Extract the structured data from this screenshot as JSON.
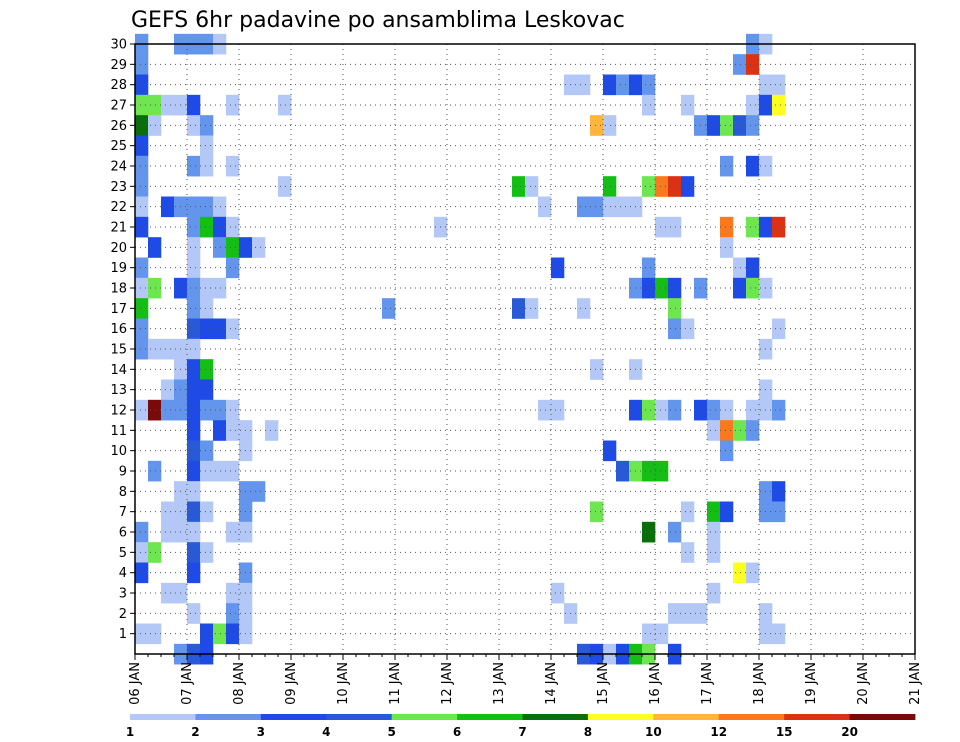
{
  "chart_data": {
    "type": "heatmap",
    "title": "GEFS 6hr padavine po ansamblima Leskovac",
    "x_tick_labels": [
      "06 JAN",
      "07 JAN",
      "08 JAN",
      "09 JAN",
      "10 JAN",
      "11 JAN",
      "12 JAN",
      "13 JAN",
      "14 JAN",
      "15 JAN",
      "16 JAN",
      "17 JAN",
      "18 JAN",
      "19 JAN",
      "20 JAN",
      "21 JAN"
    ],
    "y_tick_labels": [
      "1",
      "2",
      "3",
      "4",
      "5",
      "6",
      "7",
      "8",
      "9",
      "10",
      "11",
      "12",
      "13",
      "14",
      "15",
      "16",
      "17",
      "18",
      "19",
      "20",
      "21",
      "22",
      "23",
      "24",
      "25",
      "26",
      "27",
      "28",
      "29",
      "30"
    ],
    "x_range_days": [
      6,
      21
    ],
    "time_step_hours": 6,
    "y_range_members": [
      0,
      30
    ],
    "grid": true,
    "colorbar": {
      "tick_labels": [
        "1",
        "2",
        "3",
        "4",
        "5",
        "6",
        "7",
        "8",
        "10",
        "12",
        "15",
        "20"
      ],
      "colors": [
        "#b4c8f8",
        "#6495ed",
        "#1e4be6",
        "#285ad7",
        "#6ee650",
        "#14be14",
        "#0a6e0a",
        "#ffff1e",
        "#ffb43c",
        "#fa781e",
        "#dc3214",
        "#780a0a"
      ]
    },
    "cells": [
      [
        0,
        30,
        2
      ],
      [
        0,
        29,
        2
      ],
      [
        0,
        28,
        3
      ],
      [
        0,
        27,
        5
      ],
      [
        0,
        26,
        7
      ],
      [
        0,
        25,
        3
      ],
      [
        0,
        24,
        2
      ],
      [
        0,
        23,
        2
      ],
      [
        0,
        22,
        1
      ],
      [
        0,
        21,
        3
      ],
      [
        0,
        19,
        2
      ],
      [
        0,
        18,
        1
      ],
      [
        0,
        17,
        6
      ],
      [
        0,
        16,
        2
      ],
      [
        0,
        15,
        2
      ],
      [
        0,
        12,
        1
      ],
      [
        0,
        6,
        2
      ],
      [
        0,
        5,
        1
      ],
      [
        0,
        4,
        3
      ],
      [
        0,
        1,
        1
      ],
      [
        1,
        27,
        5
      ],
      [
        1,
        26,
        1
      ],
      [
        1,
        20,
        3
      ],
      [
        1,
        18,
        5
      ],
      [
        1,
        15,
        1
      ],
      [
        1,
        12,
        12
      ],
      [
        1,
        9,
        2
      ],
      [
        1,
        5,
        5
      ],
      [
        1,
        1,
        1
      ],
      [
        2,
        27,
        1
      ],
      [
        2,
        22,
        3
      ],
      [
        2,
        15,
        1
      ],
      [
        2,
        13,
        1
      ],
      [
        2,
        12,
        2
      ],
      [
        2,
        7,
        1
      ],
      [
        2,
        6,
        1
      ],
      [
        2,
        3,
        1
      ],
      [
        3,
        30,
        2
      ],
      [
        3,
        27,
        1
      ],
      [
        3,
        22,
        2
      ],
      [
        3,
        18,
        3
      ],
      [
        3,
        15,
        1
      ],
      [
        3,
        14,
        1
      ],
      [
        3,
        13,
        2
      ],
      [
        3,
        12,
        2
      ],
      [
        3,
        8,
        1
      ],
      [
        3,
        7,
        1
      ],
      [
        3,
        6,
        1
      ],
      [
        3,
        3,
        1
      ],
      [
        3,
        0,
        2
      ],
      [
        4,
        30,
        2
      ],
      [
        4,
        27,
        3
      ],
      [
        4,
        26,
        1
      ],
      [
        4,
        24,
        2
      ],
      [
        4,
        22,
        2
      ],
      [
        4,
        21,
        2
      ],
      [
        4,
        20,
        1
      ],
      [
        4,
        19,
        1
      ],
      [
        4,
        18,
        2
      ],
      [
        4,
        17,
        2
      ],
      [
        4,
        16,
        4
      ],
      [
        4,
        15,
        1
      ],
      [
        4,
        14,
        3
      ],
      [
        4,
        13,
        3
      ],
      [
        4,
        12,
        3
      ],
      [
        4,
        11,
        3
      ],
      [
        4,
        10,
        4
      ],
      [
        4,
        9,
        3
      ],
      [
        4,
        8,
        1
      ],
      [
        4,
        7,
        4
      ],
      [
        4,
        6,
        1
      ],
      [
        4,
        5,
        4
      ],
      [
        4,
        4,
        3
      ],
      [
        4,
        2,
        1
      ],
      [
        4,
        0,
        4
      ],
      [
        5,
        30,
        2
      ],
      [
        5,
        26,
        2
      ],
      [
        5,
        25,
        1
      ],
      [
        5,
        24,
        1
      ],
      [
        5,
        22,
        2
      ],
      [
        5,
        21,
        6
      ],
      [
        5,
        18,
        1
      ],
      [
        5,
        17,
        1
      ],
      [
        5,
        16,
        3
      ],
      [
        5,
        14,
        6
      ],
      [
        5,
        13,
        3
      ],
      [
        5,
        12,
        2
      ],
      [
        5,
        10,
        2
      ],
      [
        5,
        9,
        1
      ],
      [
        5,
        7,
        1
      ],
      [
        5,
        5,
        1
      ],
      [
        5,
        1,
        3
      ],
      [
        5,
        0,
        3
      ],
      [
        6,
        30,
        1
      ],
      [
        6,
        22,
        1
      ],
      [
        6,
        21,
        3
      ],
      [
        6,
        20,
        2
      ],
      [
        6,
        18,
        1
      ],
      [
        6,
        16,
        3
      ],
      [
        6,
        12,
        2
      ],
      [
        6,
        11,
        3
      ],
      [
        6,
        9,
        1
      ],
      [
        6,
        1,
        5
      ],
      [
        7,
        27,
        1
      ],
      [
        7,
        24,
        1
      ],
      [
        7,
        21,
        1
      ],
      [
        7,
        20,
        6
      ],
      [
        7,
        19,
        2
      ],
      [
        7,
        16,
        1
      ],
      [
        7,
        12,
        1
      ],
      [
        7,
        11,
        1
      ],
      [
        7,
        9,
        1
      ],
      [
        7,
        6,
        1
      ],
      [
        7,
        3,
        1
      ],
      [
        7,
        2,
        2
      ],
      [
        7,
        1,
        3
      ],
      [
        8,
        20,
        3
      ],
      [
        8,
        11,
        1
      ],
      [
        8,
        10,
        1
      ],
      [
        8,
        8,
        2
      ],
      [
        8,
        7,
        2
      ],
      [
        8,
        6,
        1
      ],
      [
        8,
        4,
        2
      ],
      [
        8,
        3,
        1
      ],
      [
        8,
        2,
        1
      ],
      [
        8,
        1,
        1
      ],
      [
        9,
        20,
        1
      ],
      [
        9,
        8,
        2
      ],
      [
        10,
        11,
        1
      ],
      [
        11,
        27,
        1
      ],
      [
        11,
        23,
        1
      ],
      [
        19,
        17,
        2
      ],
      [
        23,
        21,
        1
      ],
      [
        29,
        23,
        6
      ],
      [
        29,
        17,
        4
      ],
      [
        30,
        23,
        1
      ],
      [
        30,
        17,
        1
      ],
      [
        31,
        22,
        1
      ],
      [
        31,
        12,
        1
      ],
      [
        32,
        19,
        3
      ],
      [
        32,
        12,
        1
      ],
      [
        32,
        3,
        1
      ],
      [
        33,
        28,
        1
      ],
      [
        33,
        2,
        1
      ],
      [
        34,
        28,
        1
      ],
      [
        34,
        22,
        2
      ],
      [
        34,
        17,
        1
      ],
      [
        34,
        0,
        4
      ],
      [
        35,
        26,
        9
      ],
      [
        35,
        22,
        2
      ],
      [
        35,
        14,
        1
      ],
      [
        35,
        7,
        5
      ],
      [
        35,
        0,
        3
      ],
      [
        36,
        28,
        3
      ],
      [
        36,
        26,
        1
      ],
      [
        36,
        23,
        6
      ],
      [
        36,
        22,
        1
      ],
      [
        36,
        10,
        3
      ],
      [
        36,
        0,
        1
      ],
      [
        37,
        28,
        2
      ],
      [
        37,
        22,
        1
      ],
      [
        37,
        9,
        4
      ],
      [
        37,
        0,
        3
      ],
      [
        38,
        28,
        3
      ],
      [
        38,
        22,
        1
      ],
      [
        38,
        18,
        2
      ],
      [
        38,
        14,
        1
      ],
      [
        38,
        12,
        3
      ],
      [
        38,
        9,
        5
      ],
      [
        38,
        0,
        6
      ],
      [
        39,
        28,
        2
      ],
      [
        39,
        27,
        1
      ],
      [
        39,
        23,
        5
      ],
      [
        39,
        19,
        2
      ],
      [
        39,
        18,
        3
      ],
      [
        39,
        12,
        5
      ],
      [
        39,
        9,
        6
      ],
      [
        39,
        6,
        7
      ],
      [
        39,
        1,
        1
      ],
      [
        39,
        0,
        5
      ],
      [
        40,
        23,
        10
      ],
      [
        40,
        21,
        1
      ],
      [
        40,
        18,
        6
      ],
      [
        40,
        12,
        1
      ],
      [
        40,
        9,
        6
      ],
      [
        40,
        1,
        1
      ],
      [
        41,
        23,
        11
      ],
      [
        41,
        21,
        1
      ],
      [
        41,
        18,
        3
      ],
      [
        41,
        17,
        5
      ],
      [
        41,
        16,
        2
      ],
      [
        41,
        12,
        2
      ],
      [
        41,
        6,
        2
      ],
      [
        41,
        2,
        1
      ],
      [
        41,
        0,
        3
      ],
      [
        42,
        27,
        1
      ],
      [
        42,
        23,
        3
      ],
      [
        42,
        16,
        1
      ],
      [
        42,
        7,
        1
      ],
      [
        42,
        5,
        1
      ],
      [
        42,
        2,
        1
      ],
      [
        43,
        26,
        2
      ],
      [
        43,
        18,
        2
      ],
      [
        43,
        12,
        3
      ],
      [
        43,
        2,
        1
      ],
      [
        44,
        26,
        3
      ],
      [
        44,
        12,
        2
      ],
      [
        44,
        11,
        1
      ],
      [
        44,
        7,
        6
      ],
      [
        44,
        6,
        1
      ],
      [
        44,
        5,
        1
      ],
      [
        44,
        3,
        1
      ],
      [
        45,
        26,
        5
      ],
      [
        45,
        24,
        2
      ],
      [
        45,
        21,
        10
      ],
      [
        45,
        20,
        1
      ],
      [
        45,
        12,
        1
      ],
      [
        45,
        11,
        10
      ],
      [
        45,
        10,
        2
      ],
      [
        45,
        7,
        3
      ],
      [
        46,
        29,
        2
      ],
      [
        46,
        26,
        4
      ],
      [
        46,
        19,
        1
      ],
      [
        46,
        18,
        3
      ],
      [
        46,
        11,
        5
      ],
      [
        46,
        4,
        8
      ],
      [
        47,
        30,
        2
      ],
      [
        47,
        29,
        11
      ],
      [
        47,
        27,
        1
      ],
      [
        47,
        26,
        2
      ],
      [
        47,
        24,
        3
      ],
      [
        47,
        21,
        5
      ],
      [
        47,
        19,
        3
      ],
      [
        47,
        18,
        5
      ],
      [
        47,
        12,
        1
      ],
      [
        47,
        11,
        2
      ],
      [
        47,
        4,
        1
      ],
      [
        48,
        30,
        1
      ],
      [
        48,
        28,
        1
      ],
      [
        48,
        27,
        3
      ],
      [
        48,
        24,
        1
      ],
      [
        48,
        21,
        3
      ],
      [
        48,
        18,
        1
      ],
      [
        48,
        15,
        1
      ],
      [
        48,
        13,
        1
      ],
      [
        48,
        12,
        1
      ],
      [
        48,
        8,
        2
      ],
      [
        48,
        7,
        2
      ],
      [
        48,
        2,
        1
      ],
      [
        48,
        1,
        1
      ],
      [
        49,
        28,
        1
      ],
      [
        49,
        27,
        8
      ],
      [
        49,
        21,
        11
      ],
      [
        49,
        16,
        1
      ],
      [
        49,
        12,
        2
      ],
      [
        49,
        8,
        3
      ],
      [
        49,
        7,
        2
      ],
      [
        49,
        1,
        1
      ]
    ]
  }
}
